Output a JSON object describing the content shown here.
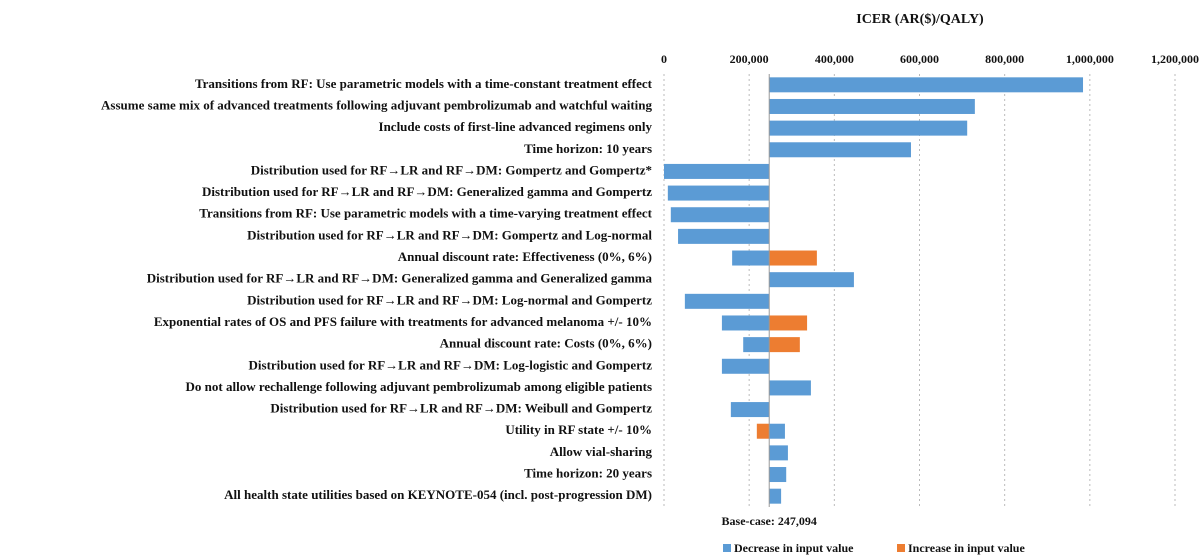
{
  "chart_data": {
    "type": "tornado",
    "title": "ICER (AR($)/QALY)",
    "categories": [
      "Transitions from RF: Use parametric models with a time-constant treatment effect",
      "Assume same mix of advanced treatments following adjuvant pembrolizumab and watchful waiting",
      "Include costs of first-line advanced regimens only",
      "Time horizon: 10 years",
      "Distribution used for RF→LR and RF→DM: Gompertz and Gompertz*",
      "Distribution used for RF→LR and RF→DM: Generalized gamma and Gompertz",
      "Transitions from RF: Use parametric models with a time-varying treatment effect",
      "Distribution used for RF→LR and RF→DM: Gompertz and Log-normal",
      "Annual discount rate: Effectiveness (0%, 6%)",
      "Distribution used for RF→LR and RF→DM: Generalized gamma and Generalized gamma",
      "Distribution used for RF→LR and RF→DM: Log-normal and Gompertz",
      "Exponential rates of OS and PFS failure with treatments for advanced melanoma +/- 10%",
      "Annual discount rate: Costs (0%, 6%)",
      "Distribution used for RF→LR and RF→DM: Log-logistic and Gompertz",
      "Do not allow rechallenge following adjuvant pembrolizumab among eligible patients",
      "Distribution used for RF→LR and RF→DM: Weibull and Gompertz",
      "Utility in RF state +/- 10%",
      "Allow vial-sharing",
      "Time horizon: 20 years",
      "All health state utilities based on KEYNOTE-054 (incl. post-progression DM)"
    ],
    "series": [
      {
        "name": "Decrease in input value",
        "color": "#5b9bd5",
        "values": [
          984000,
          730000,
          712000,
          580000,
          0,
          9000,
          16000,
          33000,
          160000,
          446000,
          49000,
          136000,
          186000,
          136000,
          345000,
          157000,
          284000,
          291000,
          287000,
          275000
        ]
      },
      {
        "name": "Increase in input value",
        "color": "#ed7d31",
        "values": [
          null,
          null,
          null,
          null,
          null,
          null,
          null,
          null,
          359000,
          null,
          null,
          336000,
          319000,
          null,
          null,
          null,
          218000,
          null,
          null,
          null
        ]
      }
    ],
    "base_case": {
      "value": 247094,
      "label": "Base-case: 247,094"
    },
    "xlim": [
      0,
      1200000
    ],
    "xticks": [
      0,
      {
        "value": 200000,
        "label": "200,000"
      },
      {
        "value": 400000,
        "label": "400,000"
      },
      {
        "value": 600000,
        "label": "600,000"
      },
      {
        "value": 800000,
        "label": "800,000"
      },
      {
        "value": 1000000,
        "label": "1,000,000"
      },
      {
        "value": 1200000,
        "label": "1,200,000"
      }
    ],
    "grid": true,
    "legend": "bottom"
  }
}
